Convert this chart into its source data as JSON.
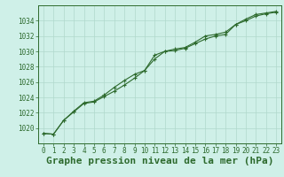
{
  "x": [
    0,
    1,
    2,
    3,
    4,
    5,
    6,
    7,
    8,
    9,
    10,
    11,
    12,
    13,
    14,
    15,
    16,
    17,
    18,
    19,
    20,
    21,
    22,
    23
  ],
  "line1": [
    1019.3,
    1019.2,
    1021.0,
    1022.1,
    1023.2,
    1023.4,
    1024.1,
    1024.8,
    1025.6,
    1026.5,
    1027.5,
    1029.5,
    1030.0,
    1030.1,
    1030.4,
    1031.0,
    1031.6,
    1032.0,
    1032.2,
    1033.5,
    1034.0,
    1034.6,
    1034.9,
    1035.1
  ],
  "line2": [
    1019.3,
    1019.2,
    1021.0,
    1022.2,
    1023.3,
    1023.5,
    1024.3,
    1025.3,
    1026.2,
    1027.0,
    1027.5,
    1029.0,
    1030.0,
    1030.3,
    1030.5,
    1031.2,
    1032.0,
    1032.2,
    1032.5,
    1033.5,
    1034.2,
    1034.8,
    1035.0,
    1035.2
  ],
  "ylim": [
    1018,
    1036
  ],
  "xlim": [
    -0.5,
    23.5
  ],
  "yticks": [
    1020,
    1022,
    1024,
    1026,
    1028,
    1030,
    1032,
    1034
  ],
  "xticks": [
    0,
    1,
    2,
    3,
    4,
    5,
    6,
    7,
    8,
    9,
    10,
    11,
    12,
    13,
    14,
    15,
    16,
    17,
    18,
    19,
    20,
    21,
    22,
    23
  ],
  "xlabel": "Graphe pression niveau de la mer (hPa)",
  "bg_color": "#cff0e8",
  "line_color": "#2d6a2d",
  "grid_color": "#b0d8cc",
  "marker": "+",
  "marker_size": 3.5,
  "linewidth": 0.8,
  "xlabel_fontsize": 8,
  "tick_fontsize": 5.5
}
